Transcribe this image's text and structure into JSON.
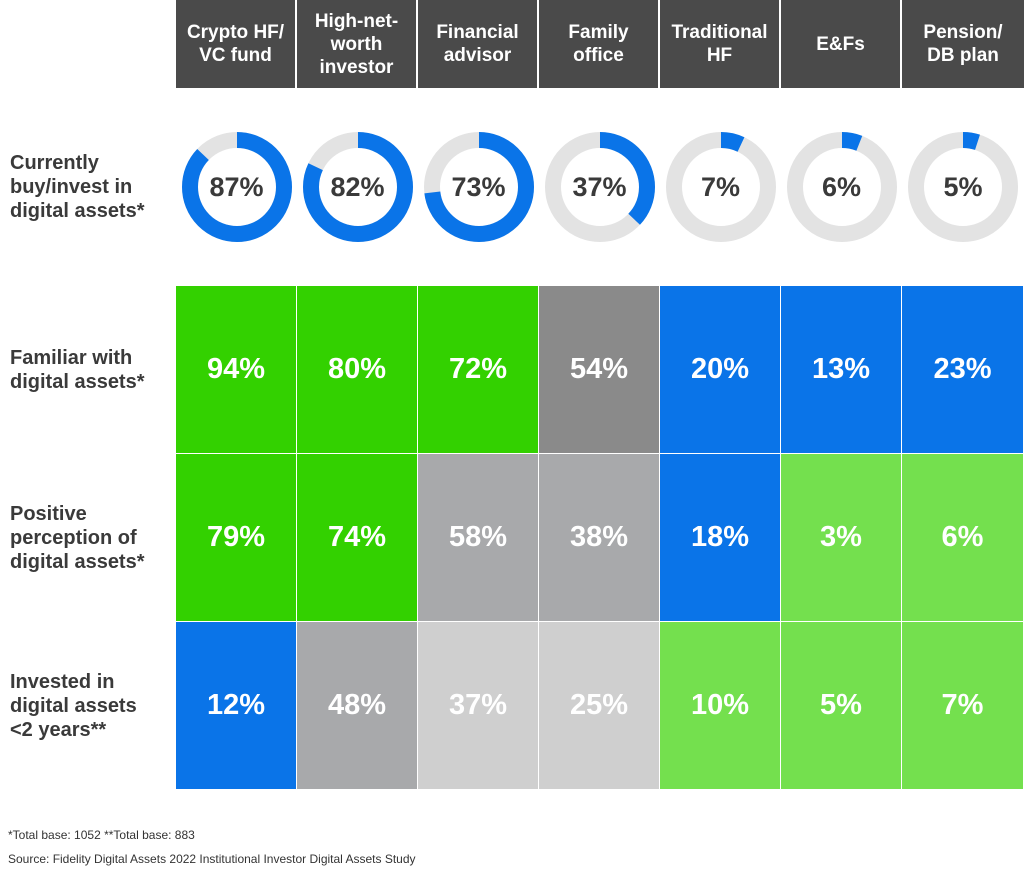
{
  "chart_data": {
    "type": "table",
    "colors": {
      "header_bg": "#4a4a4a",
      "donut_fill": "#0a74e8",
      "donut_track": "#e3e3e3"
    },
    "columns": [
      "Crypto HF/\nVC fund",
      "High-net-\nworth\ninvestor",
      "Financial\nadvisor",
      "Family\noffice",
      "Traditional\nHF",
      "E&Fs",
      "Pension/\nDB plan"
    ],
    "donut_row": {
      "label": "Currently\nbuy/invest in\ndigital assets*",
      "values": [
        87,
        82,
        73,
        37,
        7,
        6,
        5
      ],
      "display": [
        "87%",
        "82%",
        "73%",
        "37%",
        "7%",
        "6%",
        "5%"
      ]
    },
    "rows": [
      {
        "label": "Familiar with\ndigital assets*",
        "values": [
          94,
          80,
          72,
          54,
          20,
          13,
          23
        ],
        "display": [
          "94%",
          "80%",
          "72%",
          "54%",
          "20%",
          "13%",
          "23%"
        ],
        "colors": [
          "#33d100",
          "#33d100",
          "#33d100",
          "#8a8a8a",
          "#0a74e8",
          "#0a74e8",
          "#0a74e8"
        ]
      },
      {
        "label": "Positive\nperception of\ndigital assets*",
        "values": [
          79,
          74,
          58,
          38,
          18,
          3,
          6
        ],
        "display": [
          "79%",
          "74%",
          "58%",
          "38%",
          "18%",
          "3%",
          "6%"
        ],
        "colors": [
          "#33d100",
          "#33d100",
          "#a8a9ab",
          "#a8a9ab",
          "#0a74e8",
          "#74e04e",
          "#74e04e"
        ]
      },
      {
        "label": "Invested in\ndigital assets\n<2 years**",
        "values": [
          12,
          48,
          37,
          25,
          10,
          5,
          7
        ],
        "display": [
          "12%",
          "48%",
          "37%",
          "25%",
          "10%",
          "5%",
          "7%"
        ],
        "colors": [
          "#0a74e8",
          "#a8a9ab",
          "#cfcfcf",
          "#cfcfcf",
          "#74e04e",
          "#74e04e",
          "#74e04e"
        ]
      }
    ]
  },
  "footnotes": {
    "base": "*Total base: 1052   **Total base: 883",
    "source": "Source: Fidelity Digital Assets 2022 Institutional Investor Digital Assets Study"
  }
}
